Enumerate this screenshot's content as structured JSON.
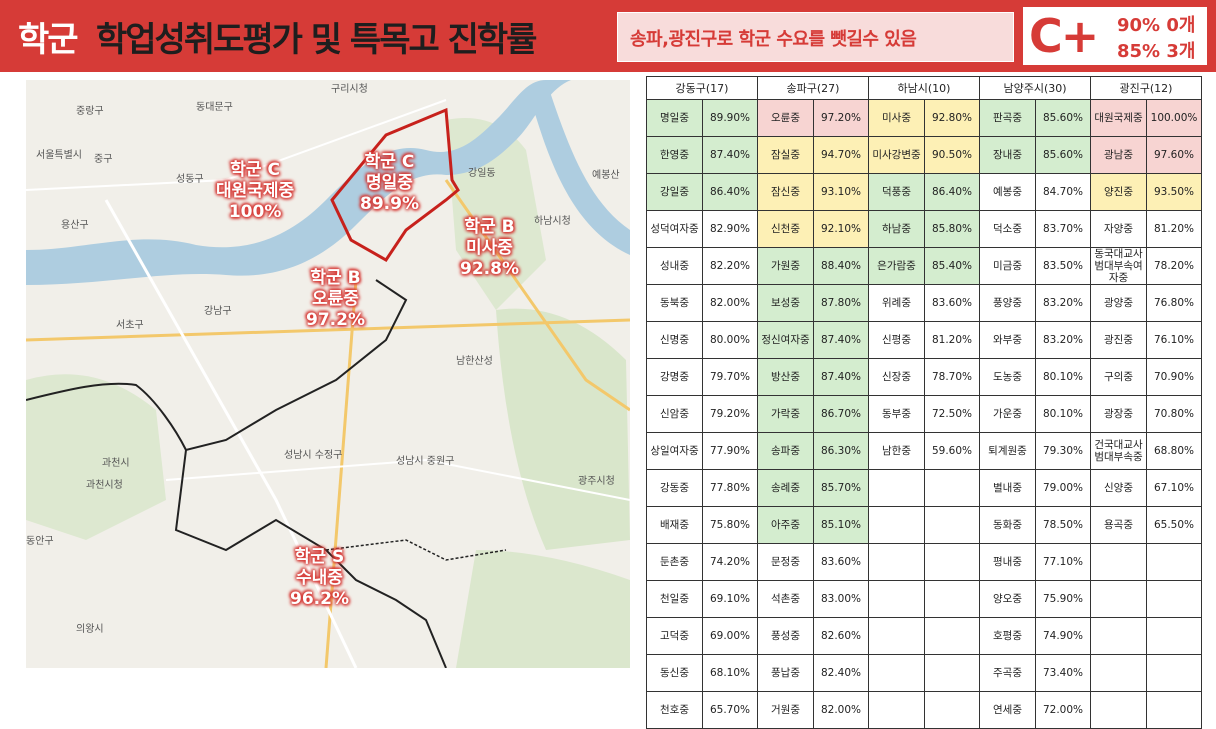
{
  "header": {
    "title_prefix": "학군",
    "title_main": "학업성취도평가 및 특목고 진학률",
    "subtitle": "송파,광진구로 학군 수요를 뺏길수 있음",
    "grade": "C+",
    "grade_line1": "90% 0개",
    "grade_line2": "85% 3개"
  },
  "colors": {
    "accent": "#d63b37",
    "green": "#d4edcf",
    "yellow": "#fdf0b5",
    "red": "#f7d4d2"
  },
  "map": {
    "annotations": [
      {
        "lines": [
          "학군 C",
          "대원국제중",
          "100%"
        ]
      },
      {
        "lines": [
          "학군 C",
          "명일중",
          "89.9%"
        ]
      },
      {
        "lines": [
          "학군 B",
          "미사중",
          "92.8%"
        ]
      },
      {
        "lines": [
          "학군 B",
          "오륜중",
          "97.2%"
        ]
      },
      {
        "lines": [
          "학군 S",
          "수내중",
          "96.2%"
        ]
      }
    ],
    "labels": [
      "구리시청",
      "중랑구",
      "동대문구",
      "서울특별시",
      "성동구",
      "중구",
      "용산구",
      "서초구",
      "강남구",
      "과천시",
      "과천시청",
      "동안구",
      "의왕시",
      "성남시 수정구",
      "성남시 중원구",
      "광주시청",
      "하남시청",
      "강일동",
      "예봉산",
      "남한산성"
    ]
  },
  "table": {
    "headers": [
      "강동구(17)",
      "송파구(27)",
      "하남시(10)",
      "남양주시(30)",
      "광진구(12)"
    ],
    "rows": [
      [
        [
          "명일중",
          "89.90%",
          "g"
        ],
        [
          "오륜중",
          "97.20%",
          "r"
        ],
        [
          "미사중",
          "92.80%",
          "y"
        ],
        [
          "판곡중",
          "85.60%",
          "g"
        ],
        [
          "대원국제중",
          "100.00%",
          "r"
        ]
      ],
      [
        [
          "한영중",
          "87.40%",
          "g"
        ],
        [
          "잠실중",
          "94.70%",
          "y"
        ],
        [
          "미사강변중",
          "90.50%",
          "y"
        ],
        [
          "장내중",
          "85.60%",
          "g"
        ],
        [
          "광남중",
          "97.60%",
          "r"
        ]
      ],
      [
        [
          "강일중",
          "86.40%",
          "g"
        ],
        [
          "잠신중",
          "93.10%",
          "y"
        ],
        [
          "덕풍중",
          "86.40%",
          "g"
        ],
        [
          "예봉중",
          "84.70%",
          ""
        ],
        [
          "양진중",
          "93.50%",
          "y"
        ]
      ],
      [
        [
          "성덕여자중",
          "82.90%",
          ""
        ],
        [
          "신천중",
          "92.10%",
          "y"
        ],
        [
          "하남중",
          "85.80%",
          "g"
        ],
        [
          "덕소중",
          "83.70%",
          ""
        ],
        [
          "자양중",
          "81.20%",
          ""
        ]
      ],
      [
        [
          "성내중",
          "82.20%",
          ""
        ],
        [
          "가원중",
          "88.40%",
          "g"
        ],
        [
          "은가람중",
          "85.40%",
          "g"
        ],
        [
          "미금중",
          "83.50%",
          ""
        ],
        [
          "동국대교사범대부속여자중",
          "78.20%",
          ""
        ]
      ],
      [
        [
          "동북중",
          "82.00%",
          ""
        ],
        [
          "보성중",
          "87.80%",
          "g"
        ],
        [
          "위례중",
          "83.60%",
          ""
        ],
        [
          "풍양중",
          "83.20%",
          ""
        ],
        [
          "광양중",
          "76.80%",
          ""
        ]
      ],
      [
        [
          "신명중",
          "80.00%",
          ""
        ],
        [
          "정신여자중",
          "87.40%",
          "g"
        ],
        [
          "신평중",
          "81.20%",
          ""
        ],
        [
          "와부중",
          "83.20%",
          ""
        ],
        [
          "광진중",
          "76.10%",
          ""
        ]
      ],
      [
        [
          "강명중",
          "79.70%",
          ""
        ],
        [
          "방산중",
          "87.40%",
          "g"
        ],
        [
          "신장중",
          "78.70%",
          ""
        ],
        [
          "도농중",
          "80.10%",
          ""
        ],
        [
          "구의중",
          "70.90%",
          ""
        ]
      ],
      [
        [
          "신암중",
          "79.20%",
          ""
        ],
        [
          "가락중",
          "86.70%",
          "g"
        ],
        [
          "동부중",
          "72.50%",
          ""
        ],
        [
          "가운중",
          "80.10%",
          ""
        ],
        [
          "광장중",
          "70.80%",
          ""
        ]
      ],
      [
        [
          "상일여자중",
          "77.90%",
          ""
        ],
        [
          "송파중",
          "86.30%",
          "g"
        ],
        [
          "남한중",
          "59.60%",
          ""
        ],
        [
          "퇴계원중",
          "79.30%",
          ""
        ],
        [
          "건국대교사범대부속중",
          "68.80%",
          ""
        ]
      ],
      [
        [
          "강동중",
          "77.80%",
          ""
        ],
        [
          "송례중",
          "85.70%",
          "g"
        ],
        [
          "",
          ""
        ],
        [
          "별내중",
          "79.00%",
          ""
        ],
        [
          "신양중",
          "67.10%",
          ""
        ]
      ],
      [
        [
          "배재중",
          "75.80%",
          ""
        ],
        [
          "아주중",
          "85.10%",
          "g"
        ],
        [
          "",
          ""
        ],
        [
          "동화중",
          "78.50%",
          ""
        ],
        [
          "용곡중",
          "65.50%",
          ""
        ]
      ],
      [
        [
          "둔촌중",
          "74.20%",
          ""
        ],
        [
          "문정중",
          "83.60%",
          ""
        ],
        [
          "",
          ""
        ],
        [
          "평내중",
          "77.10%",
          ""
        ],
        [
          "",
          ""
        ]
      ],
      [
        [
          "천일중",
          "69.10%",
          ""
        ],
        [
          "석촌중",
          "83.00%",
          ""
        ],
        [
          "",
          ""
        ],
        [
          "양오중",
          "75.90%",
          ""
        ],
        [
          "",
          ""
        ]
      ],
      [
        [
          "고덕중",
          "69.00%",
          ""
        ],
        [
          "풍성중",
          "82.60%",
          ""
        ],
        [
          "",
          ""
        ],
        [
          "호평중",
          "74.90%",
          ""
        ],
        [
          "",
          ""
        ]
      ],
      [
        [
          "동신중",
          "68.10%",
          ""
        ],
        [
          "풍납중",
          "82.40%",
          ""
        ],
        [
          "",
          ""
        ],
        [
          "주곡중",
          "73.40%",
          ""
        ],
        [
          "",
          ""
        ]
      ],
      [
        [
          "천호중",
          "65.70%",
          ""
        ],
        [
          "거원중",
          "82.00%",
          ""
        ],
        [
          "",
          ""
        ],
        [
          "연세중",
          "72.00%",
          ""
        ],
        [
          "",
          ""
        ]
      ]
    ]
  }
}
